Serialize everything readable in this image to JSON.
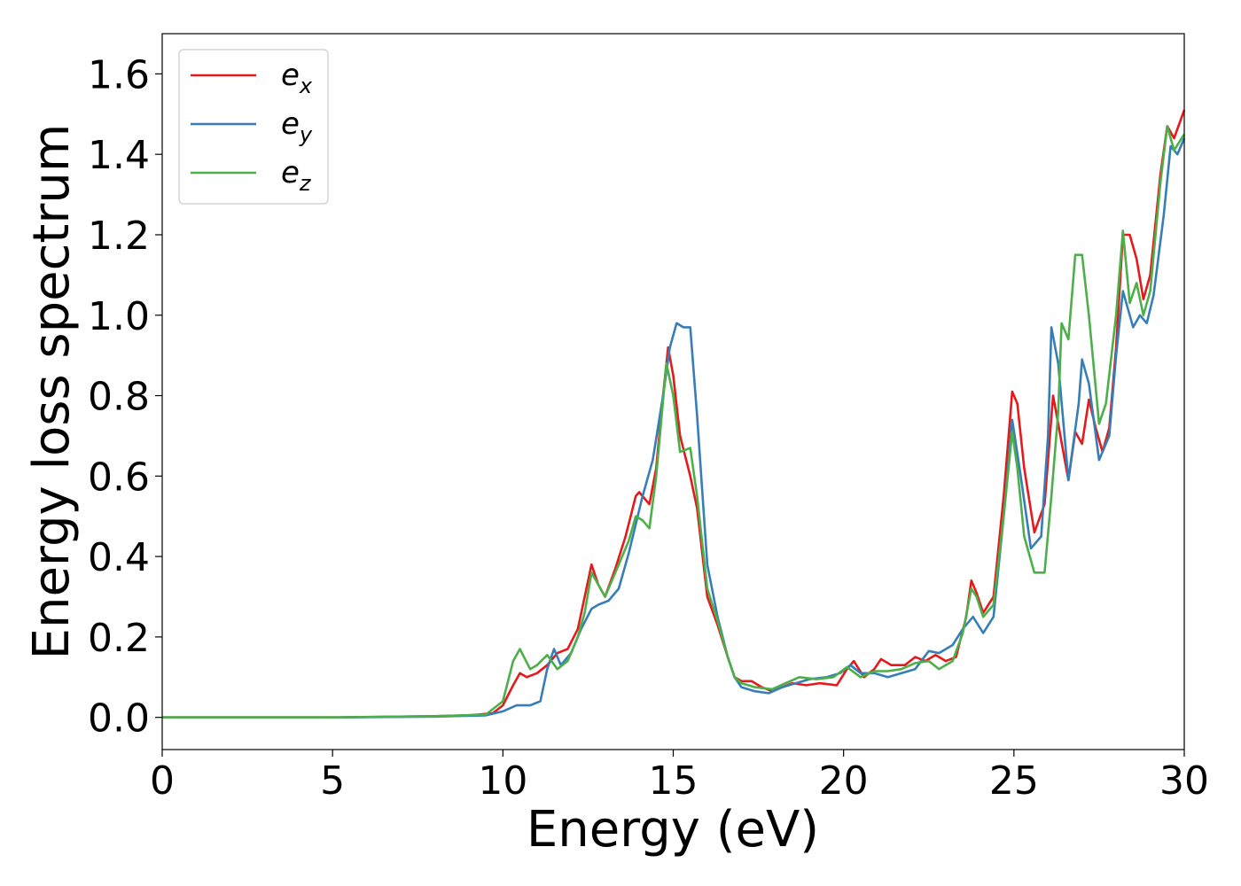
{
  "chart_data": {
    "type": "line",
    "xlabel": "Energy (eV)",
    "ylabel": "Energy loss spectrum",
    "xlim": [
      0,
      30
    ],
    "ylim": [
      -0.08,
      1.7
    ],
    "xticks": [
      "0",
      "5",
      "10",
      "15",
      "20",
      "25",
      "30"
    ],
    "yticks": [
      "0.0",
      "0.2",
      "0.4",
      "0.6",
      "0.8",
      "1.0",
      "1.2",
      "1.4",
      "1.6"
    ],
    "grid": false,
    "legend_position": "top-left",
    "series": [
      {
        "name": "e",
        "subscript": "x",
        "color": "#e41a1c",
        "points": [
          [
            0,
            0
          ],
          [
            5,
            0
          ],
          [
            8,
            0.003
          ],
          [
            9,
            0.005
          ],
          [
            9.7,
            0.01
          ],
          [
            10,
            0.03
          ],
          [
            10.3,
            0.08
          ],
          [
            10.5,
            0.11
          ],
          [
            10.7,
            0.1
          ],
          [
            11.0,
            0.11
          ],
          [
            11.3,
            0.13
          ],
          [
            11.6,
            0.16
          ],
          [
            11.9,
            0.17
          ],
          [
            12.2,
            0.22
          ],
          [
            12.4,
            0.3
          ],
          [
            12.6,
            0.38
          ],
          [
            12.8,
            0.33
          ],
          [
            13.0,
            0.3
          ],
          [
            13.3,
            0.37
          ],
          [
            13.6,
            0.45
          ],
          [
            13.9,
            0.55
          ],
          [
            14.0,
            0.56
          ],
          [
            14.3,
            0.53
          ],
          [
            14.5,
            0.62
          ],
          [
            14.7,
            0.8
          ],
          [
            14.85,
            0.92
          ],
          [
            15.0,
            0.85
          ],
          [
            15.2,
            0.7
          ],
          [
            15.5,
            0.6
          ],
          [
            15.7,
            0.52
          ],
          [
            16.0,
            0.3
          ],
          [
            16.3,
            0.23
          ],
          [
            16.6,
            0.15
          ],
          [
            16.8,
            0.1
          ],
          [
            17.0,
            0.09
          ],
          [
            17.3,
            0.09
          ],
          [
            17.6,
            0.075
          ],
          [
            17.9,
            0.065
          ],
          [
            18.2,
            0.075
          ],
          [
            18.5,
            0.085
          ],
          [
            18.9,
            0.08
          ],
          [
            19.3,
            0.085
          ],
          [
            19.8,
            0.08
          ],
          [
            20.1,
            0.12
          ],
          [
            20.3,
            0.14
          ],
          [
            20.6,
            0.1
          ],
          [
            20.9,
            0.12
          ],
          [
            21.1,
            0.145
          ],
          [
            21.4,
            0.13
          ],
          [
            21.8,
            0.13
          ],
          [
            22.1,
            0.15
          ],
          [
            22.4,
            0.14
          ],
          [
            22.7,
            0.155
          ],
          [
            23.0,
            0.14
          ],
          [
            23.3,
            0.15
          ],
          [
            23.6,
            0.25
          ],
          [
            23.75,
            0.34
          ],
          [
            23.9,
            0.31
          ],
          [
            24.1,
            0.26
          ],
          [
            24.4,
            0.3
          ],
          [
            24.7,
            0.55
          ],
          [
            24.95,
            0.81
          ],
          [
            25.1,
            0.78
          ],
          [
            25.3,
            0.62
          ],
          [
            25.6,
            0.46
          ],
          [
            25.9,
            0.53
          ],
          [
            26.15,
            0.8
          ],
          [
            26.3,
            0.73
          ],
          [
            26.6,
            0.59
          ],
          [
            26.8,
            0.71
          ],
          [
            27.0,
            0.68
          ],
          [
            27.2,
            0.79
          ],
          [
            27.4,
            0.72
          ],
          [
            27.6,
            0.66
          ],
          [
            27.8,
            0.72
          ],
          [
            28.0,
            0.92
          ],
          [
            28.2,
            1.2
          ],
          [
            28.4,
            1.2
          ],
          [
            28.6,
            1.14
          ],
          [
            28.8,
            1.04
          ],
          [
            29.0,
            1.1
          ],
          [
            29.3,
            1.35
          ],
          [
            29.5,
            1.47
          ],
          [
            29.7,
            1.44
          ],
          [
            30.0,
            1.51
          ]
        ]
      },
      {
        "name": "e",
        "subscript": "y",
        "color": "#377eb8",
        "points": [
          [
            0,
            0
          ],
          [
            5,
            0
          ],
          [
            8,
            0.002
          ],
          [
            9.5,
            0.005
          ],
          [
            10,
            0.015
          ],
          [
            10.4,
            0.03
          ],
          [
            10.8,
            0.03
          ],
          [
            11.1,
            0.04
          ],
          [
            11.3,
            0.12
          ],
          [
            11.5,
            0.17
          ],
          [
            11.7,
            0.13
          ],
          [
            12.0,
            0.16
          ],
          [
            12.3,
            0.22
          ],
          [
            12.6,
            0.27
          ],
          [
            12.8,
            0.28
          ],
          [
            13.1,
            0.29
          ],
          [
            13.4,
            0.32
          ],
          [
            13.7,
            0.41
          ],
          [
            14.1,
            0.55
          ],
          [
            14.4,
            0.64
          ],
          [
            14.7,
            0.8
          ],
          [
            14.9,
            0.92
          ],
          [
            15.1,
            0.98
          ],
          [
            15.3,
            0.97
          ],
          [
            15.5,
            0.97
          ],
          [
            15.7,
            0.75
          ],
          [
            16.0,
            0.38
          ],
          [
            16.3,
            0.25
          ],
          [
            16.6,
            0.15
          ],
          [
            16.8,
            0.1
          ],
          [
            17.0,
            0.075
          ],
          [
            17.4,
            0.065
          ],
          [
            17.8,
            0.06
          ],
          [
            18.2,
            0.075
          ],
          [
            18.6,
            0.085
          ],
          [
            19.0,
            0.095
          ],
          [
            19.5,
            0.1
          ],
          [
            19.9,
            0.11
          ],
          [
            20.2,
            0.13
          ],
          [
            20.5,
            0.11
          ],
          [
            20.9,
            0.11
          ],
          [
            21.3,
            0.1
          ],
          [
            21.7,
            0.11
          ],
          [
            22.1,
            0.12
          ],
          [
            22.5,
            0.165
          ],
          [
            22.8,
            0.16
          ],
          [
            23.2,
            0.18
          ],
          [
            23.5,
            0.22
          ],
          [
            23.8,
            0.25
          ],
          [
            24.1,
            0.21
          ],
          [
            24.4,
            0.25
          ],
          [
            24.7,
            0.5
          ],
          [
            24.95,
            0.74
          ],
          [
            25.2,
            0.6
          ],
          [
            25.5,
            0.42
          ],
          [
            25.8,
            0.45
          ],
          [
            26.0,
            0.7
          ],
          [
            26.1,
            0.97
          ],
          [
            26.3,
            0.88
          ],
          [
            26.6,
            0.59
          ],
          [
            26.9,
            0.78
          ],
          [
            27.0,
            0.89
          ],
          [
            27.2,
            0.83
          ],
          [
            27.5,
            0.64
          ],
          [
            27.8,
            0.7
          ],
          [
            28.0,
            0.9
          ],
          [
            28.2,
            1.06
          ],
          [
            28.5,
            0.97
          ],
          [
            28.7,
            1.0
          ],
          [
            28.9,
            0.98
          ],
          [
            29.1,
            1.05
          ],
          [
            29.4,
            1.25
          ],
          [
            29.6,
            1.42
          ],
          [
            29.8,
            1.4
          ],
          [
            30.0,
            1.44
          ]
        ]
      },
      {
        "name": "e",
        "subscript": "z",
        "color": "#4daf4a",
        "points": [
          [
            0,
            0
          ],
          [
            5,
            0
          ],
          [
            8,
            0.003
          ],
          [
            9.5,
            0.007
          ],
          [
            10,
            0.04
          ],
          [
            10.3,
            0.14
          ],
          [
            10.5,
            0.17
          ],
          [
            10.8,
            0.12
          ],
          [
            11.0,
            0.13
          ],
          [
            11.3,
            0.155
          ],
          [
            11.6,
            0.12
          ],
          [
            11.9,
            0.14
          ],
          [
            12.2,
            0.2
          ],
          [
            12.4,
            0.26
          ],
          [
            12.6,
            0.36
          ],
          [
            12.8,
            0.33
          ],
          [
            13.0,
            0.3
          ],
          [
            13.4,
            0.38
          ],
          [
            13.7,
            0.44
          ],
          [
            13.9,
            0.5
          ],
          [
            14.1,
            0.49
          ],
          [
            14.3,
            0.47
          ],
          [
            14.5,
            0.6
          ],
          [
            14.8,
            0.88
          ],
          [
            15.0,
            0.8
          ],
          [
            15.2,
            0.66
          ],
          [
            15.5,
            0.67
          ],
          [
            15.7,
            0.55
          ],
          [
            16.0,
            0.32
          ],
          [
            16.3,
            0.24
          ],
          [
            16.6,
            0.15
          ],
          [
            16.8,
            0.1
          ],
          [
            17.0,
            0.085
          ],
          [
            17.4,
            0.075
          ],
          [
            17.9,
            0.07
          ],
          [
            18.3,
            0.085
          ],
          [
            18.7,
            0.1
          ],
          [
            19.2,
            0.095
          ],
          [
            19.7,
            0.1
          ],
          [
            20.1,
            0.125
          ],
          [
            20.5,
            0.1
          ],
          [
            20.9,
            0.115
          ],
          [
            21.3,
            0.115
          ],
          [
            21.7,
            0.12
          ],
          [
            22.1,
            0.135
          ],
          [
            22.5,
            0.14
          ],
          [
            22.8,
            0.12
          ],
          [
            23.2,
            0.14
          ],
          [
            23.5,
            0.21
          ],
          [
            23.75,
            0.32
          ],
          [
            23.9,
            0.3
          ],
          [
            24.1,
            0.25
          ],
          [
            24.4,
            0.28
          ],
          [
            24.7,
            0.5
          ],
          [
            24.95,
            0.71
          ],
          [
            25.1,
            0.62
          ],
          [
            25.3,
            0.45
          ],
          [
            25.6,
            0.36
          ],
          [
            25.9,
            0.36
          ],
          [
            26.1,
            0.55
          ],
          [
            26.3,
            0.76
          ],
          [
            26.4,
            0.98
          ],
          [
            26.6,
            0.94
          ],
          [
            26.8,
            1.15
          ],
          [
            27.0,
            1.15
          ],
          [
            27.2,
            1.0
          ],
          [
            27.5,
            0.73
          ],
          [
            27.7,
            0.78
          ],
          [
            28.0,
            1.0
          ],
          [
            28.2,
            1.21
          ],
          [
            28.4,
            1.03
          ],
          [
            28.6,
            1.08
          ],
          [
            28.8,
            1.0
          ],
          [
            29.0,
            1.06
          ],
          [
            29.3,
            1.33
          ],
          [
            29.5,
            1.47
          ],
          [
            29.7,
            1.41
          ],
          [
            30.0,
            1.45
          ]
        ]
      }
    ]
  }
}
